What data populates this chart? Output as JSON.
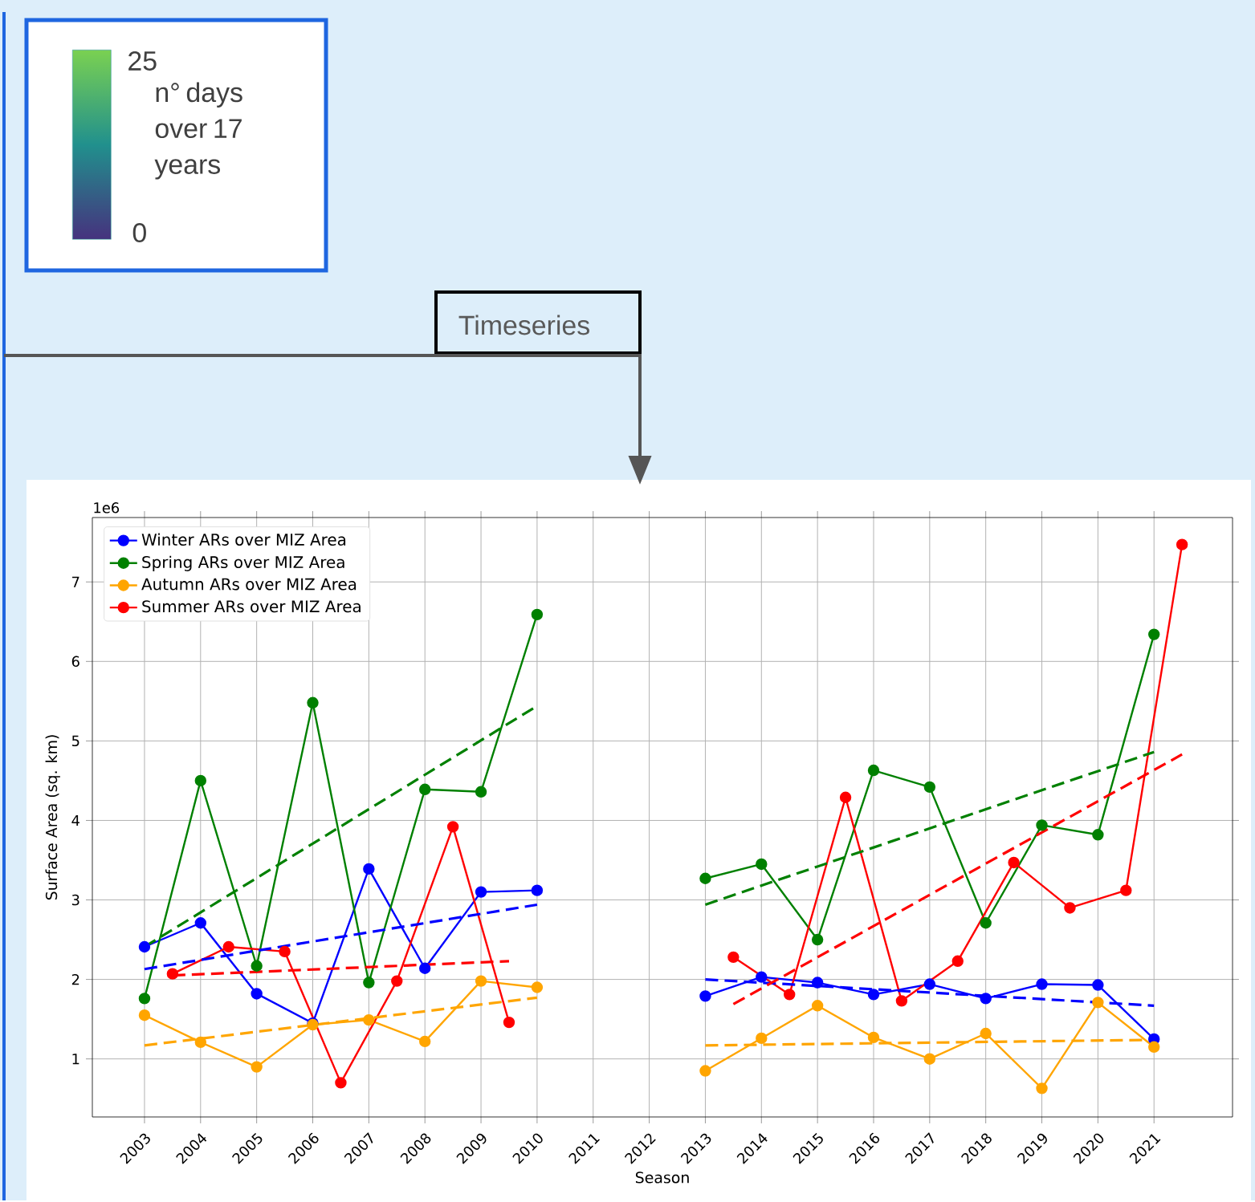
{
  "chart_data": [
    {
      "type": "other",
      "annotations": [
        "25",
        "n° days over 17 years",
        "0"
      ]
    },
    {
      "type": "line",
      "title": "Timeseries",
      "xlabel": "Season",
      "ylabel": "Surface Area (sq. km)",
      "annotations": [
        "1e6"
      ],
      "xlim": [
        2002.07,
        2022.4
      ],
      "ylim": [
        0.27,
        7.81
      ],
      "xticks": [
        2003,
        2004,
        2005,
        2006,
        2007,
        2008,
        2009,
        2010,
        2011,
        2012,
        2013,
        2014,
        2015,
        2016,
        2017,
        2018,
        2019,
        2020,
        2021
      ],
      "yticks": [
        1,
        2,
        3,
        4,
        5,
        6,
        7
      ],
      "grid": true,
      "legend": "top left",
      "marker": "circle",
      "line_style": "solid",
      "series": [
        {
          "name": "Winter ARs over MIZ Area",
          "color": "#0000ff",
          "x": [
            2003,
            2004,
            2005,
            2006,
            2007,
            2008,
            2009,
            2010,
            2011,
            2012,
            2013,
            2014,
            2015,
            2016,
            2017,
            2018,
            2019,
            2020,
            2021
          ],
          "values": [
            2.41,
            2.71,
            1.82,
            1.45,
            3.39,
            2.14,
            3.1,
            3.12,
            null,
            null,
            1.79,
            2.03,
            1.96,
            1.81,
            1.94,
            1.76,
            1.94,
            1.93,
            1.25
          ]
        },
        {
          "name": "Spring ARs over MIZ Area",
          "color": "#008000",
          "x": [
            2003,
            2004,
            2005,
            2006,
            2007,
            2008,
            2009,
            2010,
            2011,
            2012,
            2013,
            2014,
            2015,
            2016,
            2017,
            2018,
            2019,
            2020,
            2021
          ],
          "values": [
            1.76,
            4.5,
            2.17,
            5.48,
            1.96,
            4.39,
            4.36,
            6.59,
            null,
            null,
            3.27,
            3.45,
            2.5,
            4.63,
            4.42,
            2.71,
            3.94,
            3.82,
            6.34
          ]
        },
        {
          "name": "Autumn ARs over MIZ Area",
          "color": "#ffa500",
          "x": [
            2003,
            2004,
            2005,
            2006,
            2007,
            2008,
            2009,
            2010,
            2011,
            2012,
            2013,
            2014,
            2015,
            2016,
            2017,
            2018,
            2019,
            2020,
            2021
          ],
          "values": [
            1.55,
            1.21,
            0.9,
            1.43,
            1.49,
            1.22,
            1.98,
            1.9,
            null,
            null,
            0.85,
            1.26,
            1.67,
            1.27,
            1.0,
            1.32,
            0.63,
            1.71,
            1.15
          ]
        },
        {
          "name": "Summer ARs over MIZ Area",
          "color": "#ff0000",
          "x": [
            2003.5,
            2004.5,
            2005.5,
            2006.5,
            2007.5,
            2008.5,
            2009.5,
            2010.5,
            2011.5,
            2012.5,
            2013.5,
            2014.5,
            2015.5,
            2016.5,
            2017.5,
            2018.5,
            2019.5,
            2020.5,
            2021.5
          ],
          "values": [
            2.07,
            2.41,
            2.35,
            0.7,
            1.98,
            3.92,
            1.46,
            null,
            null,
            null,
            2.28,
            1.81,
            4.29,
            1.73,
            2.23,
            3.47,
            2.9,
            3.12,
            7.47
          ]
        },
        {
          "type": "line",
          "line_style": "dashed",
          "marker": "none",
          "color": "#0000ff",
          "x": [
            2003,
            2010
          ],
          "values": [
            2.13,
            2.94
          ]
        },
        {
          "type": "line",
          "line_style": "dashed",
          "marker": "none",
          "color": "#0000ff",
          "x": [
            2013,
            2021
          ],
          "values": [
            2.0,
            1.67
          ]
        },
        {
          "type": "line",
          "line_style": "dashed",
          "marker": "none",
          "color": "#008000",
          "x": [
            2003,
            2010
          ],
          "values": [
            2.41,
            5.44
          ]
        },
        {
          "type": "line",
          "line_style": "dashed",
          "marker": "none",
          "color": "#008000",
          "x": [
            2013,
            2021
          ],
          "values": [
            2.94,
            4.86
          ]
        },
        {
          "type": "line",
          "line_style": "dashed",
          "marker": "none",
          "color": "#ffa500",
          "x": [
            2003,
            2010
          ],
          "values": [
            1.17,
            1.77
          ]
        },
        {
          "type": "line",
          "line_style": "dashed",
          "marker": "none",
          "color": "#ffa500",
          "x": [
            2013,
            2021
          ],
          "values": [
            1.17,
            1.24
          ]
        },
        {
          "type": "line",
          "line_style": "dashed",
          "marker": "none",
          "color": "#ff0000",
          "x": [
            2003.5,
            2009.5
          ],
          "values": [
            2.05,
            2.23
          ]
        },
        {
          "type": "line",
          "line_style": "dashed",
          "marker": "none",
          "color": "#ff0000",
          "x": [
            2013.5,
            2021.5
          ],
          "values": [
            1.69,
            4.83
          ]
        }
      ]
    }
  ]
}
